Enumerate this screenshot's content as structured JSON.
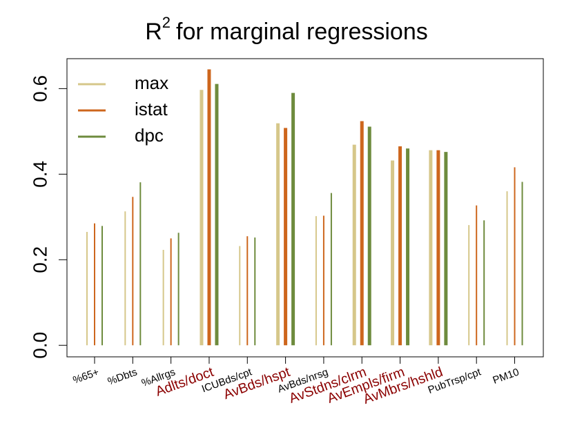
{
  "chart_data": {
    "type": "bar",
    "title": "R",
    "title_superscript": "2",
    "title_rest": "for marginal regressions",
    "categories": [
      "%65+",
      "%Dbts",
      "%Allrgs",
      "Adlts/doct",
      "ICUBds/cpt",
      "AvBds/hspt",
      "AvBds/nrsg",
      "AvStdns/clrm",
      "AvEmpls/firm",
      "AvMbrs/hshld",
      "PubTrsp/cpt",
      "PM10"
    ],
    "highlighted": [
      false,
      false,
      false,
      true,
      false,
      true,
      false,
      true,
      true,
      true,
      false,
      false
    ],
    "highlight_color": "#8b0000",
    "series": [
      {
        "name": "max",
        "color": "#d6c78a",
        "values": [
          0.265,
          0.313,
          0.223,
          0.597,
          0.232,
          0.519,
          0.302,
          0.469,
          0.432,
          0.456,
          0.281,
          0.36
        ]
      },
      {
        "name": "istat",
        "color": "#cd661d",
        "values": [
          0.285,
          0.347,
          0.25,
          0.645,
          0.255,
          0.508,
          0.303,
          0.524,
          0.465,
          0.456,
          0.327,
          0.416
        ]
      },
      {
        "name": "dpc",
        "color": "#6e8b3d",
        "values": [
          0.279,
          0.381,
          0.263,
          0.611,
          0.252,
          0.59,
          0.356,
          0.511,
          0.46,
          0.452,
          0.292,
          0.382
        ]
      }
    ],
    "ylim": [
      -0.027,
      0.67
    ],
    "yticks": [
      {
        "value": 0,
        "label": "0.0"
      },
      {
        "value": 0.2,
        "label": "0.2"
      },
      {
        "value": 0.4,
        "label": "0.4"
      },
      {
        "value": 0.6,
        "label": "0.6"
      }
    ],
    "legend": "top-left"
  }
}
